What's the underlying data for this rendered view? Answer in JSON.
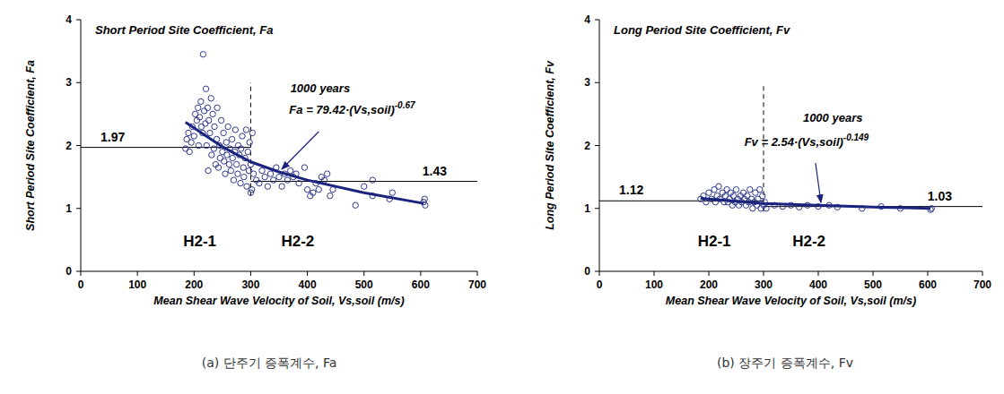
{
  "chart_data": [
    {
      "type": "scatter",
      "title": "Short Period Site Coefficient, Fa",
      "x_label": "Mean Shear Wave Velocity of Soil, Vs,soil (m/s)",
      "y_label": "Short Period Site Coefficient, Fa",
      "caption": "(a) 단주기 증폭계수, Fa",
      "annotations": [
        "1000 years",
        "Fa = 79.42·(Vs,soil)-0.67"
      ],
      "zone_labels": [
        "H2-1",
        "H2-2"
      ],
      "boundary": {
        "value": 300,
        "from": 1.2,
        "to": 3
      },
      "levels": [
        {
          "value": 1.97,
          "from": 0,
          "to": 300
        },
        {
          "value": 1.43,
          "from": 300,
          "to": 700
        }
      ],
      "x": [
        185,
        187,
        190,
        192,
        195,
        197,
        200,
        202,
        205,
        207,
        208,
        210,
        212,
        213,
        215,
        216,
        218,
        220,
        221,
        222,
        224,
        225,
        226,
        228,
        230,
        231,
        233,
        235,
        236,
        238,
        240,
        241,
        243,
        245,
        246,
        248,
        250,
        252,
        253,
        255,
        257,
        258,
        260,
        262,
        263,
        265,
        267,
        268,
        270,
        272,
        273,
        275,
        277,
        278,
        280,
        282,
        283,
        285,
        287,
        288,
        290,
        292,
        293,
        295,
        297,
        298,
        300,
        300,
        302,
        303,
        305,
        310,
        315,
        320,
        325,
        330,
        335,
        340,
        345,
        350,
        355,
        360,
        365,
        370,
        375,
        380,
        385,
        395,
        400,
        405,
        410,
        415,
        420,
        425,
        430,
        435,
        440,
        445,
        485,
        500,
        515,
        515,
        545,
        550,
        605,
        607,
        608
      ],
      "values": [
        1.95,
        2.1,
        2.2,
        1.9,
        2.05,
        2.3,
        2.15,
        2.5,
        2.4,
        2.6,
        2.0,
        2.45,
        2.7,
        2.3,
        2.2,
        3.45,
        2.55,
        2.35,
        2.9,
        2.0,
        2.6,
        1.6,
        2.4,
        2.2,
        2.75,
        1.85,
        2.5,
        1.95,
        2.3,
        1.7,
        2.1,
        2.6,
        1.65,
        2.0,
        1.8,
        2.4,
        1.9,
        2.2,
        1.75,
        1.55,
        2.05,
        1.85,
        2.3,
        1.7,
        1.95,
        1.6,
        2.1,
        1.8,
        1.45,
        1.9,
        2.25,
        1.7,
        1.55,
        2.0,
        1.85,
        1.4,
        1.95,
        2.15,
        1.65,
        1.5,
        1.8,
        2.25,
        1.35,
        1.9,
        1.6,
        2.05,
        1.25,
        1.7,
        1.3,
        2.2,
        1.55,
        1.45,
        1.4,
        1.6,
        1.5,
        1.35,
        1.55,
        1.45,
        1.65,
        1.5,
        1.35,
        1.55,
        1.45,
        1.6,
        1.5,
        1.55,
        1.4,
        1.65,
        1.3,
        1.2,
        1.25,
        1.4,
        1.3,
        1.5,
        1.45,
        1.55,
        1.2,
        1.3,
        1.05,
        1.35,
        1.2,
        1.45,
        1.15,
        1.25,
        1.1,
        1.15,
        1.05
      ],
      "fit": {
        "x": [
          185,
          250,
          300,
          350,
          400,
          500,
          605
        ],
        "values": [
          2.37,
          1.98,
          1.74,
          1.58,
          1.45,
          1.25,
          1.08
        ]
      },
      "color": "#2e3a8c",
      "marker": "circle-open",
      "grid": false,
      "xlim": [
        0,
        700
      ],
      "xticks": [
        0,
        100,
        200,
        300,
        400,
        500,
        600,
        700
      ],
      "ylim": [
        0,
        4
      ],
      "yticks": [
        0,
        1,
        2,
        3,
        4
      ]
    },
    {
      "type": "scatter",
      "title": "Long Period Site Coefficient, Fv",
      "x_label": "Mean Shear Wave Velocity of Soil, Vs,soil (m/s)",
      "y_label": "Long Period Site Coefficient, Fv",
      "caption": "(b) 장주기 증폭계수, Fv",
      "annotations": [
        "1000 years",
        "Fv = 2.54·(Vs,soil)-0.149"
      ],
      "zone_labels": [
        "H2-1",
        "H2-2"
      ],
      "boundary": {
        "value": 300,
        "from": 0.95,
        "to": 3
      },
      "levels": [
        {
          "value": 1.12,
          "from": 0,
          "to": 300
        },
        {
          "value": 1.03,
          "from": 300,
          "to": 700
        }
      ],
      "x": [
        185,
        190,
        195,
        200,
        205,
        210,
        212,
        215,
        218,
        220,
        225,
        228,
        230,
        233,
        235,
        238,
        240,
        243,
        245,
        248,
        250,
        253,
        255,
        258,
        260,
        263,
        265,
        268,
        270,
        273,
        275,
        278,
        280,
        283,
        285,
        288,
        290,
        293,
        295,
        298,
        300,
        302,
        305,
        320,
        335,
        350,
        365,
        380,
        400,
        420,
        435,
        480,
        515,
        550,
        605,
        607
      ],
      "values": [
        1.15,
        1.2,
        1.1,
        1.25,
        1.15,
        1.3,
        1.1,
        1.2,
        1.35,
        1.15,
        1.25,
        1.1,
        1.2,
        1.3,
        1.1,
        1.15,
        1.25,
        1.05,
        1.2,
        1.1,
        1.3,
        1.15,
        1.05,
        1.2,
        1.1,
        1.25,
        1.15,
        1.05,
        1.2,
        1.1,
        1.3,
        1.15,
        1.0,
        1.1,
        1.25,
        1.05,
        1.15,
        1.3,
        1.0,
        1.2,
        1.05,
        1.1,
        1.0,
        1.05,
        1.03,
        1.05,
        1.02,
        1.05,
        1.03,
        1.05,
        1.02,
        1.0,
        1.03,
        1.0,
        0.98,
        1.0
      ],
      "fit": {
        "x": [
          185,
          300,
          400,
          500,
          605
        ],
        "values": [
          1.16,
          1.08,
          1.05,
          1.02,
          1.0
        ]
      },
      "color": "#2e3a8c",
      "marker": "circle-open",
      "grid": false,
      "xlim": [
        0,
        700
      ],
      "xticks": [
        0,
        100,
        200,
        300,
        400,
        500,
        600,
        700
      ],
      "ylim": [
        0,
        4
      ],
      "yticks": [
        0,
        1,
        2,
        3,
        4
      ]
    }
  ]
}
